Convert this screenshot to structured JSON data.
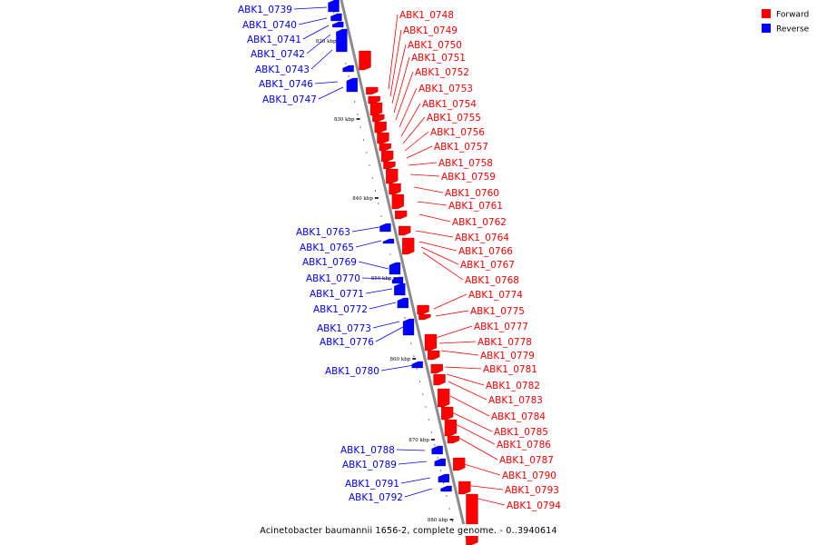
{
  "legend": {
    "forward": {
      "label": "Forward",
      "color": "#ff0000"
    },
    "reverse": {
      "label": "Reverse",
      "color": "#0000ff"
    }
  },
  "caption": "Acinetobacter baumannii 1656-2, complete genome. - 0..3940614",
  "scale_ticks": [
    {
      "label": "820 kbp"
    },
    {
      "label": "830 kbp"
    },
    {
      "label": "840 kbp"
    },
    {
      "label": "850 kbp"
    },
    {
      "label": "860 kbp"
    },
    {
      "label": "870 kbp"
    },
    {
      "label": "880 kbp"
    }
  ],
  "reverse_genes": [
    "ABK1_0739",
    "ABK1_0740",
    "ABK1_0741",
    "ABK1_0742",
    "ABK1_0743",
    "ABK1_0746",
    "ABK1_0747",
    "ABK1_0763",
    "ABK1_0765",
    "ABK1_0769",
    "ABK1_0770",
    "ABK1_0771",
    "ABK1_0772",
    "ABK1_0773",
    "ABK1_0776",
    "ABK1_0780",
    "ABK1_0788",
    "ABK1_0789",
    "ABK1_0791",
    "ABK1_0792"
  ],
  "forward_genes": [
    "ABK1_0748",
    "ABK1_0749",
    "ABK1_0750",
    "ABK1_0751",
    "ABK1_0752",
    "ABK1_0753",
    "ABK1_0754",
    "ABK1_0755",
    "ABK1_0756",
    "ABK1_0757",
    "ABK1_0758",
    "ABK1_0759",
    "ABK1_0760",
    "ABK1_0761",
    "ABK1_0762",
    "ABK1_0764",
    "ABK1_0766",
    "ABK1_0767",
    "ABK1_0768",
    "ABK1_0774",
    "ABK1_0775",
    "ABK1_0777",
    "ABK1_0778",
    "ABK1_0779",
    "ABK1_0781",
    "ABK1_0782",
    "ABK1_0783",
    "ABK1_0784",
    "ABK1_0785",
    "ABK1_0786",
    "ABK1_0787",
    "ABK1_0790",
    "ABK1_0793",
    "ABK1_0794"
  ]
}
